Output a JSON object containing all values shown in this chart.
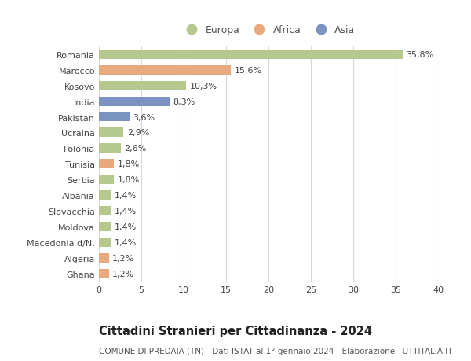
{
  "categories": [
    "Romania",
    "Marocco",
    "Kosovo",
    "India",
    "Pakistan",
    "Ucraina",
    "Polonia",
    "Tunisia",
    "Serbia",
    "Albania",
    "Slovacchia",
    "Moldova",
    "Macedonia d/N.",
    "Algeria",
    "Ghana"
  ],
  "values": [
    35.8,
    15.6,
    10.3,
    8.3,
    3.6,
    2.9,
    2.6,
    1.8,
    1.8,
    1.4,
    1.4,
    1.4,
    1.4,
    1.2,
    1.2
  ],
  "labels": [
    "35,8%",
    "15,6%",
    "10,3%",
    "8,3%",
    "3,6%",
    "2,9%",
    "2,6%",
    "1,8%",
    "1,8%",
    "1,4%",
    "1,4%",
    "1,4%",
    "1,4%",
    "1,2%",
    "1,2%"
  ],
  "continents": [
    "Europa",
    "Africa",
    "Europa",
    "Asia",
    "Asia",
    "Europa",
    "Europa",
    "Africa",
    "Europa",
    "Europa",
    "Europa",
    "Europa",
    "Europa",
    "Africa",
    "Africa"
  ],
  "continent_colors": {
    "Europa": "#b5c98e",
    "Africa": "#e8a97e",
    "Asia": "#7b93c0"
  },
  "xlim": [
    0,
    40
  ],
  "xticks": [
    0,
    5,
    10,
    15,
    20,
    25,
    30,
    35,
    40
  ],
  "title": "Cittadini Stranieri per Cittadinanza - 2024",
  "subtitle": "COMUNE DI PREDAIA (TN) - Dati ISTAT al 1° gennaio 2024 - Elaborazione TUTTITALIA.IT",
  "background_color": "#ffffff",
  "grid_color": "#d8d8d8",
  "bar_height": 0.6,
  "title_fontsize": 10.5,
  "subtitle_fontsize": 7.5,
  "tick_fontsize": 8,
  "label_fontsize": 8,
  "legend_fontsize": 9
}
